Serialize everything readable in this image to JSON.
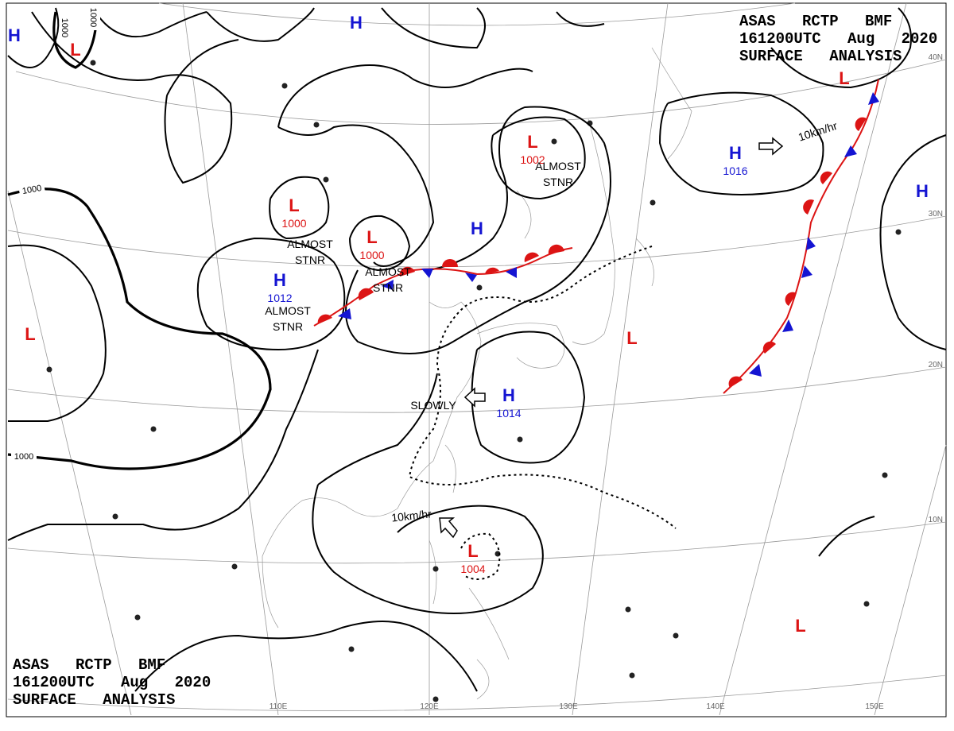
{
  "header": {
    "lines": [
      "ASAS RCTP BMF",
      "161200UTC Aug 2020",
      "SURFACE ANALYSIS"
    ]
  },
  "colors": {
    "H": "#1414d2",
    "L": "#dc1414"
  },
  "centers": [
    {
      "type": "H"
    },
    {
      "type": "L"
    },
    {
      "type": "H"
    },
    {
      "type": "L"
    },
    {
      "type": "L",
      "pressure": 1002
    },
    {
      "type": "H",
      "pressure": 1016
    },
    {
      "type": "H"
    },
    {
      "type": "L",
      "pressure": 1000
    },
    {
      "type": "L",
      "pressure": 1000
    },
    {
      "type": "H"
    },
    {
      "type": "H",
      "pressure": 1012
    },
    {
      "type": "L"
    },
    {
      "type": "L"
    },
    {
      "type": "H",
      "pressure": 1014
    },
    {
      "type": "L",
      "pressure": 1004
    },
    {
      "type": "L"
    }
  ],
  "annotations": [
    [
      "ALMOST",
      "STNR"
    ],
    [
      "ALMOST",
      "STNR"
    ],
    [
      "ALMOST",
      "STNR"
    ],
    [
      "ALMOST",
      "STNR"
    ]
  ],
  "motions": [
    "10km/hr",
    "SLOWLY",
    "10km/hr"
  ],
  "isobar_labels": [
    "1000",
    "1000",
    "1000",
    "1000"
  ],
  "latitude_labels": [
    "40N",
    "30N",
    "20N",
    "10N"
  ],
  "longitude_labels": [
    "110E",
    "120E",
    "130E",
    "140E",
    "150E"
  ]
}
